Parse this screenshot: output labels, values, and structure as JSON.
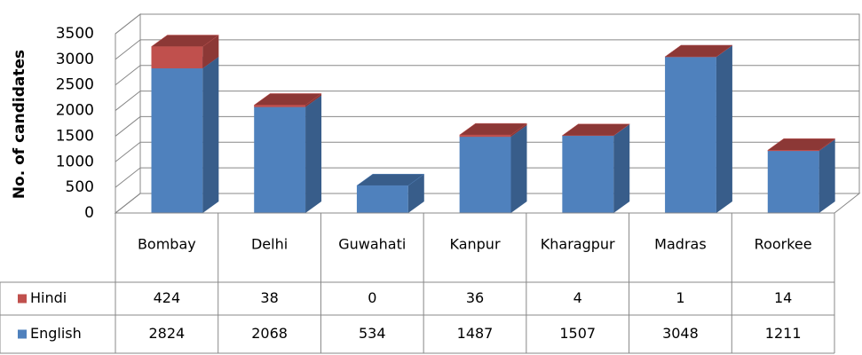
{
  "chart_data": {
    "type": "bar3d_stacked",
    "y_label": "No. of candidates",
    "categories": [
      "Bombay",
      "Delhi",
      "Guwahati",
      "Kanpur",
      "Kharagpur",
      "Madras",
      "Roorkee"
    ],
    "series": [
      {
        "name": "English",
        "color": "#4f81bd",
        "side": "#385d8a",
        "values": [
          2824,
          2068,
          534,
          1487,
          1507,
          3048,
          1211
        ]
      },
      {
        "name": "Hindi",
        "color": "#c0504d",
        "side": "#8c3836",
        "values": [
          424,
          38,
          0,
          36,
          4,
          1,
          14
        ]
      }
    ],
    "table_order": [
      1,
      0
    ],
    "ylim": [
      0,
      3500
    ],
    "yticks": [
      0,
      500,
      1000,
      1500,
      2000,
      2500,
      3000,
      3500
    ],
    "grid": true
  }
}
